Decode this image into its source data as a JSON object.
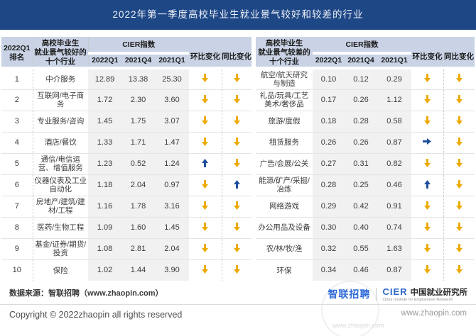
{
  "title": "2022年第一季度高校毕业生就业景气较好和较差的行业",
  "colors": {
    "title_bg": "#1E4786",
    "header_bg": "#C9D3E5",
    "value_band_bg": "#F1F1F1",
    "arrow_down": "#EDAA00",
    "arrow_up": "#1E4F9C",
    "zhaopin_blue": "#2F6AD9",
    "cier_blue": "#2B66C8"
  },
  "chart_data": {
    "type": "table",
    "title": "2022年第一季度高校毕业生就业景气较好和较差的行业",
    "headers": {
      "rank_line1": "2022Q1",
      "rank_line2": "排名",
      "good_industries": "高校毕业生\n就业景气较好的\n十个行业",
      "bad_industries": "高校毕业生\n就业景气较差的\n十个行业",
      "cier_index": "CIER指数",
      "col_2022q1": "2022Q1",
      "col_2021q4": "2021Q4",
      "col_2021q1": "2021Q1",
      "mom_change": "环比变化",
      "yoy_change": "同比变化"
    },
    "arrow_legend": {
      "down": "下降",
      "up": "上升",
      "flat": "持平"
    },
    "rows": [
      {
        "rank": "1",
        "good": {
          "industry": "中介服务",
          "values": [
            "12.89",
            "13.38",
            "25.30"
          ],
          "mom": "down",
          "yoy": "down"
        },
        "bad": {
          "industry": "航空/航天研究与制造",
          "values": [
            "0.10",
            "0.12",
            "0.29"
          ],
          "mom": "down",
          "yoy": "down"
        }
      },
      {
        "rank": "2",
        "good": {
          "industry": "互联网/电子商务",
          "values": [
            "1.72",
            "2.30",
            "3.60"
          ],
          "mom": "down",
          "yoy": "down"
        },
        "bad": {
          "industry": "礼品/玩具/工艺美术/奢侈品",
          "values": [
            "0.17",
            "0.26",
            "1.12"
          ],
          "mom": "down",
          "yoy": "down"
        }
      },
      {
        "rank": "3",
        "good": {
          "industry": "专业服务/咨询",
          "values": [
            "1.45",
            "1.75",
            "3.07"
          ],
          "mom": "down",
          "yoy": "down"
        },
        "bad": {
          "industry": "旅游/度假",
          "values": [
            "0.18",
            "0.28",
            "0.58"
          ],
          "mom": "down",
          "yoy": "down"
        }
      },
      {
        "rank": "4",
        "good": {
          "industry": "酒店/餐饮",
          "values": [
            "1.33",
            "1.71",
            "1.47"
          ],
          "mom": "down",
          "yoy": "down"
        },
        "bad": {
          "industry": "租赁服务",
          "values": [
            "0.26",
            "0.26",
            "0.87"
          ],
          "mom": "flat",
          "yoy": "down"
        }
      },
      {
        "rank": "5",
        "good": {
          "industry": "通信/电信运营、增值服务",
          "values": [
            "1.23",
            "0.52",
            "1.24"
          ],
          "mom": "up",
          "yoy": "down"
        },
        "bad": {
          "industry": "广告/会展/公关",
          "values": [
            "0.27",
            "0.31",
            "0.82"
          ],
          "mom": "down",
          "yoy": "down"
        }
      },
      {
        "rank": "6",
        "good": {
          "industry": "仪器仪表及工业自动化",
          "values": [
            "1.18",
            "2.04",
            "0.97"
          ],
          "mom": "down",
          "yoy": "up"
        },
        "bad": {
          "industry": "能源/矿产/采掘/冶炼",
          "values": [
            "0.28",
            "0.25",
            "0.46"
          ],
          "mom": "up",
          "yoy": "down"
        }
      },
      {
        "rank": "7",
        "good": {
          "industry": "房地产/建筑/建材/工程",
          "values": [
            "1.16",
            "1.78",
            "3.16"
          ],
          "mom": "down",
          "yoy": "down"
        },
        "bad": {
          "industry": "网络游戏",
          "values": [
            "0.29",
            "0.42",
            "0.91"
          ],
          "mom": "down",
          "yoy": "down"
        }
      },
      {
        "rank": "8",
        "good": {
          "industry": "医药/生物工程",
          "values": [
            "1.09",
            "1.60",
            "1.45"
          ],
          "mom": "down",
          "yoy": "down"
        },
        "bad": {
          "industry": "办公用品及设备",
          "values": [
            "0.30",
            "0.40",
            "0.74"
          ],
          "mom": "down",
          "yoy": "down"
        }
      },
      {
        "rank": "9",
        "good": {
          "industry": "基金/证券/期货/投资",
          "values": [
            "1.08",
            "2.81",
            "2.04"
          ],
          "mom": "down",
          "yoy": "down"
        },
        "bad": {
          "industry": "农/林/牧/渔",
          "values": [
            "0.32",
            "0.55",
            "1.63"
          ],
          "mom": "down",
          "yoy": "down"
        }
      },
      {
        "rank": "10",
        "good": {
          "industry": "保险",
          "values": [
            "1.02",
            "1.44",
            "3.90"
          ],
          "mom": "down",
          "yoy": "down"
        },
        "bad": {
          "industry": "环保",
          "values": [
            "0.34",
            "0.46",
            "0.87"
          ],
          "mom": "down",
          "yoy": "down"
        }
      }
    ]
  },
  "footer": {
    "source": "数据来源：智联招聘（www.zhaopin.com）",
    "copyright": "Copyright © 2022zhaopin all rights reserved",
    "zhaopin_logo": "智联招聘",
    "cier_logo": "CIER",
    "cier_name_cn": "中国就业研究所",
    "cier_name_en": "China Institute for Employment Research",
    "site_url": "www.zhaopin.com"
  }
}
